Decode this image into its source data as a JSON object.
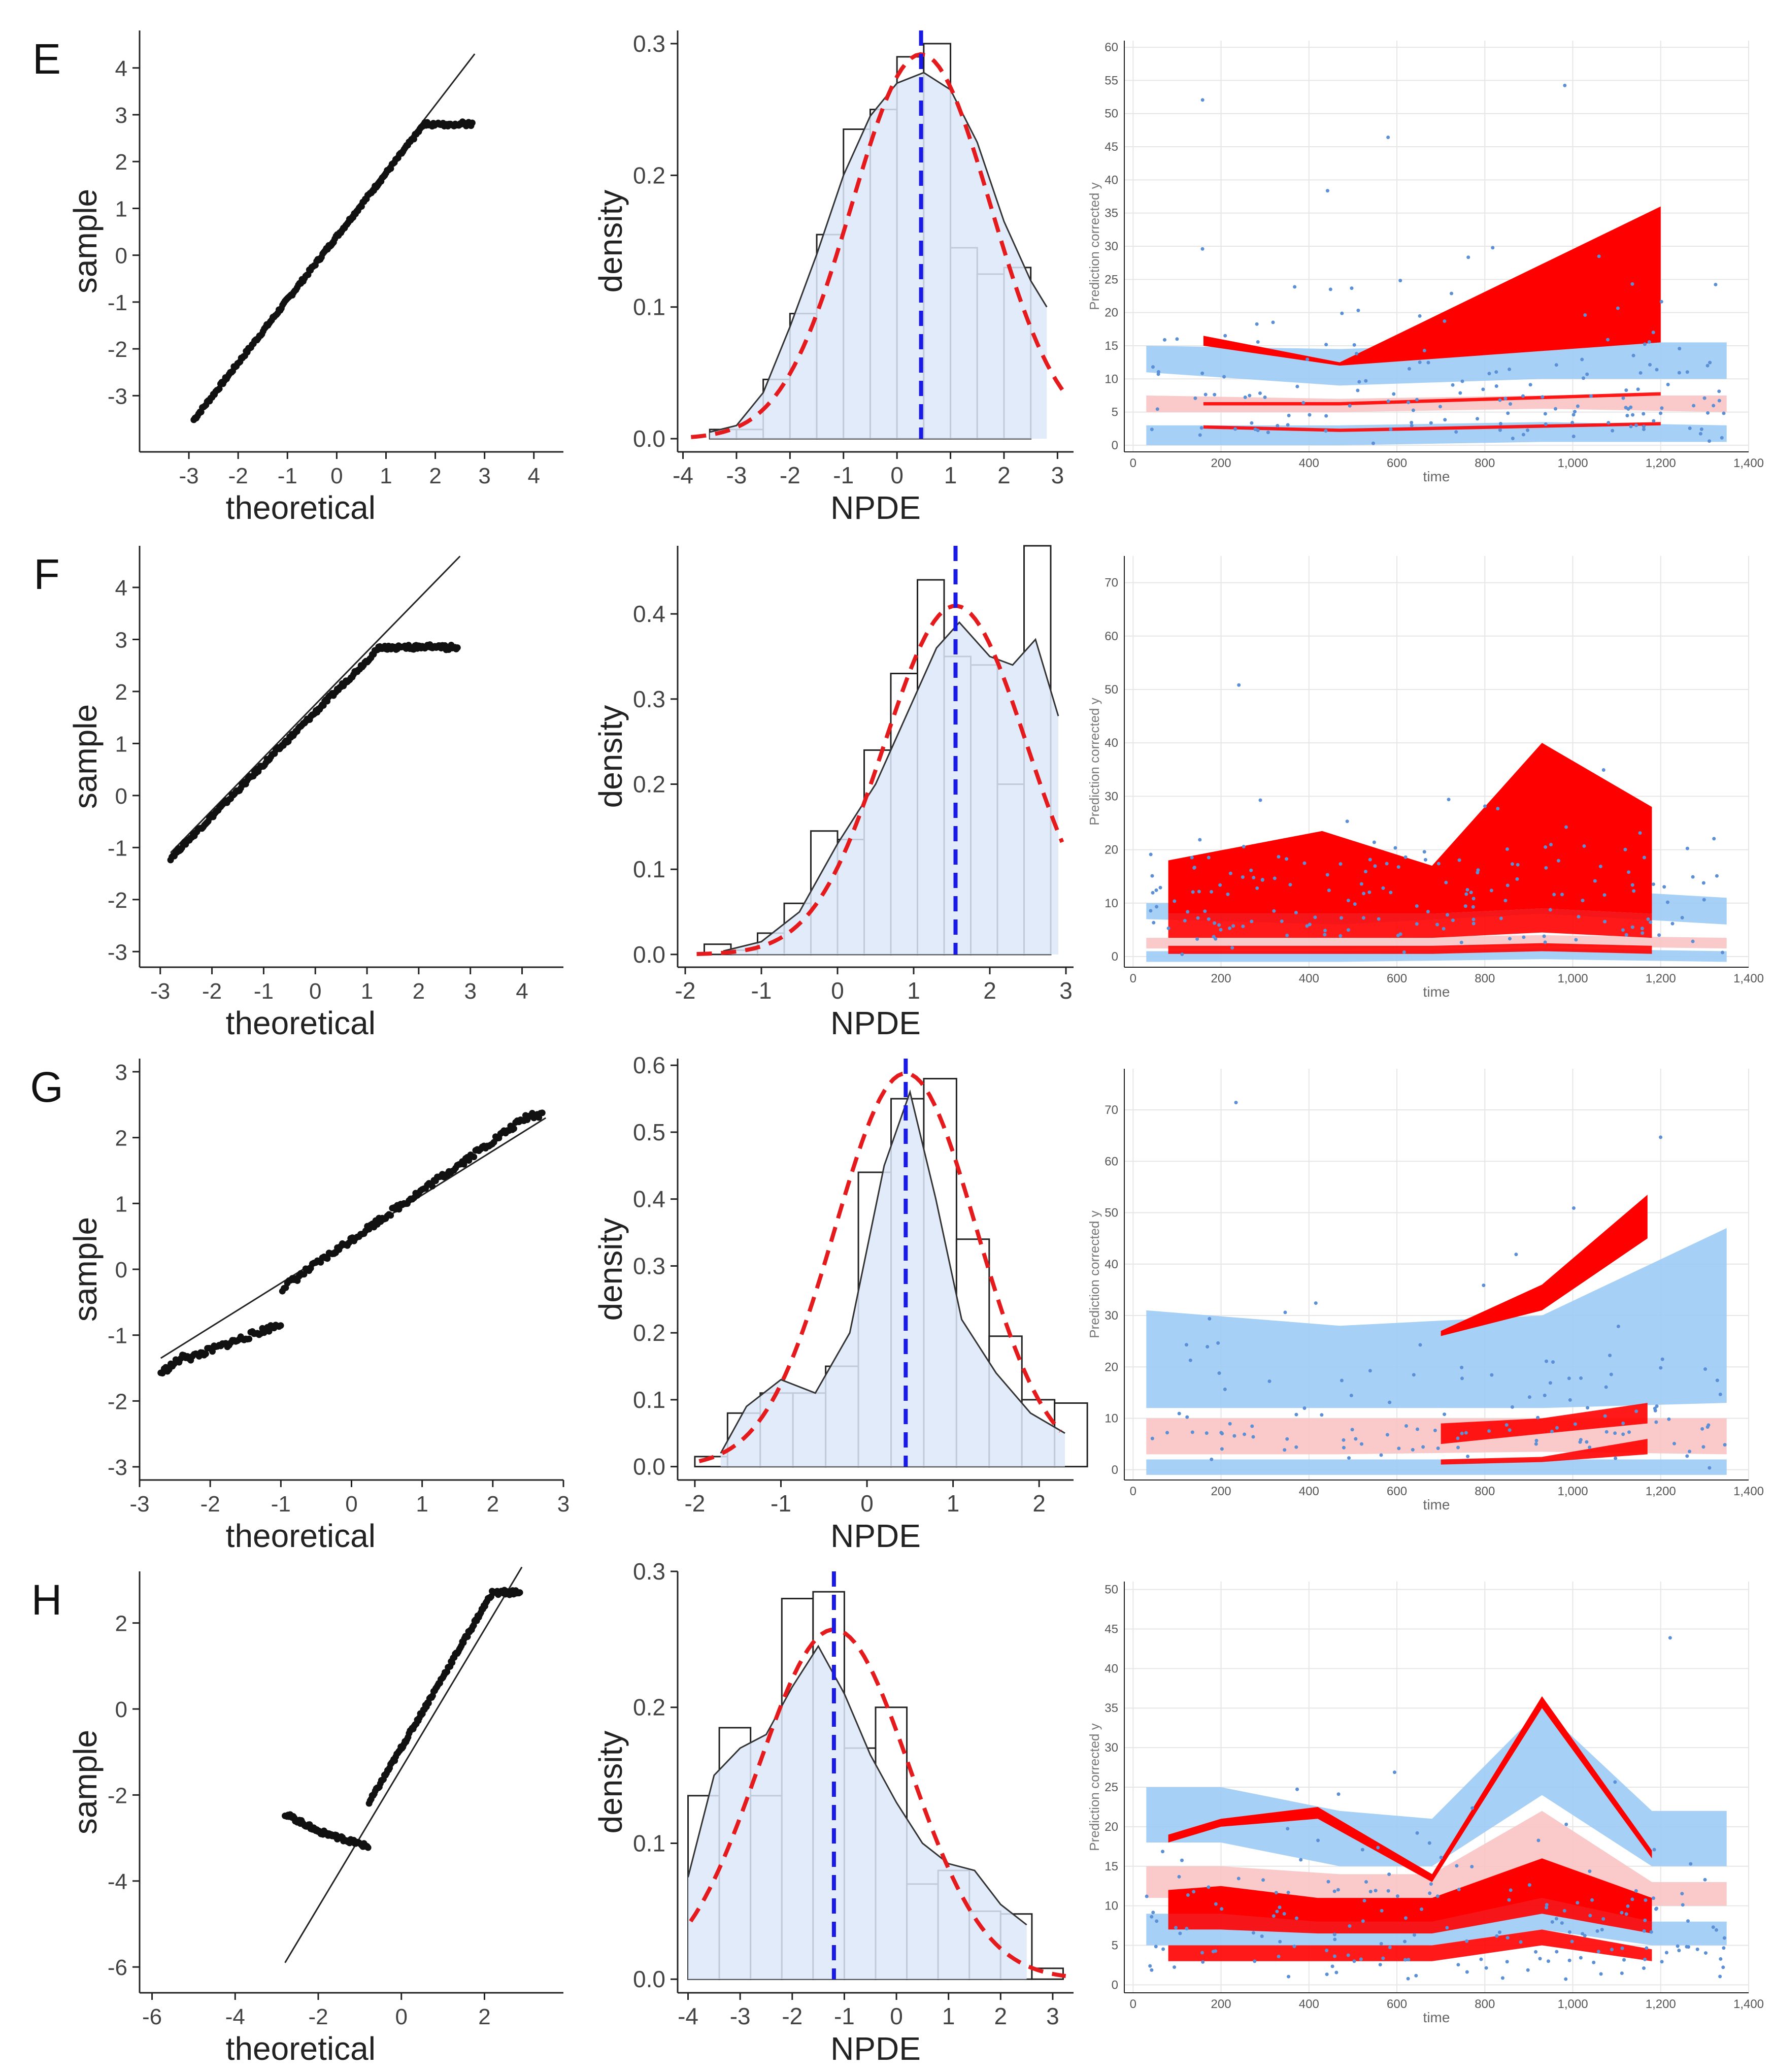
{
  "colors": {
    "hist_fill": "#dce8f8",
    "hist_stroke": "#222222",
    "normal_curve": "#e41a1c",
    "mean_line": "#1a1ae6",
    "vpc_obs_band": "#ff0000",
    "vpc_pi_blue": "#9ccbf4",
    "vpc_pi_pink": "#f9c4c4",
    "vpc_points": "#5b8fd6",
    "grid": "#e6e6e6"
  },
  "panels": [
    {
      "label": "E",
      "qq": {
        "xlabel": "theoretical",
        "ylabel": "sample",
        "xlim": [
          -4,
          4.6
        ],
        "ylim": [
          -4.2,
          4.8
        ],
        "xticks": [
          "-3",
          "-2",
          "-1",
          "0",
          "1",
          "2",
          "3",
          "4"
        ],
        "yticks": [
          "-3",
          "-2",
          "-1",
          "0",
          "1",
          "2",
          "3",
          "4"
        ],
        "line": [
          [
            -2.9,
            -3.5
          ],
          [
            2.8,
            4.3
          ]
        ],
        "cap": 2.8,
        "noise": 0.04,
        "slope": 1.35,
        "intercept": 0.4
      },
      "hist": {
        "xlabel": "NPDE",
        "ylabel": "density",
        "xlim": [
          -4.1,
          3.3
        ],
        "ylim": [
          -0.01,
          0.31
        ],
        "xticks": [
          "-4",
          "-3",
          "-2",
          "-1",
          "0",
          "1",
          "2",
          "3"
        ],
        "yticks": [
          "0.0",
          "0.1",
          "0.2",
          "0.3"
        ],
        "bin_start": -3.5,
        "bin_width": 0.5,
        "densities": [
          0.007,
          0.007,
          0.045,
          0.095,
          0.155,
          0.235,
          0.25,
          0.29,
          0.3,
          0.145,
          0.125,
          0.13
        ],
        "normal": {
          "mean": 0.45,
          "sd": 1.3
        },
        "smooth_x": [
          -3.5,
          -3.0,
          -2.5,
          -2.0,
          -1.5,
          -1.0,
          -0.5,
          0.0,
          0.5,
          1.0,
          1.5,
          2.0,
          2.5,
          2.8
        ],
        "smooth_y": [
          0.005,
          0.01,
          0.035,
          0.085,
          0.14,
          0.2,
          0.245,
          0.27,
          0.278,
          0.265,
          0.225,
          0.165,
          0.12,
          0.1
        ],
        "mean_line": 0.45
      },
      "vpc": {
        "xlabel": "time",
        "ylabel": "Prediction corrected y",
        "xlim": [
          -20,
          1400
        ],
        "ylim": [
          -1,
          61
        ],
        "xticks": [
          0,
          200,
          400,
          600,
          800,
          1000,
          1200,
          1400
        ],
        "xtick_labels": [
          "0",
          "200",
          "400",
          "600",
          "800",
          "1,000",
          "1,200",
          "1,400"
        ],
        "yticks": [
          0,
          5,
          10,
          15,
          20,
          25,
          30,
          35,
          40,
          45,
          50,
          55,
          60
        ],
        "bin_times": [
          30,
          470,
          930,
          1350
        ],
        "pi_blue_upper": [
          [
            11,
            15
          ],
          [
            9,
            14.5
          ],
          [
            10,
            15.5
          ],
          [
            10,
            15.5
          ]
        ],
        "pi_pink": [
          [
            5,
            7.5
          ],
          [
            5,
            7
          ],
          [
            5.5,
            7.5
          ],
          [
            5,
            7.5
          ]
        ],
        "pi_blue_lower": [
          [
            0,
            3
          ],
          [
            0,
            3
          ],
          [
            0.5,
            3.5
          ],
          [
            0.5,
            3
          ]
        ],
        "obs_times": [
          160,
          470,
          1200
        ],
        "obs_upper": [
          [
            15,
            16.5
          ],
          [
            12,
            12.5
          ],
          [
            15.5,
            36
          ]
        ],
        "obs_mid": [
          [
            6,
            6.5
          ],
          [
            6,
            6.5
          ],
          [
            7.5,
            8
          ]
        ],
        "obs_lower": [
          [
            2.5,
            3
          ],
          [
            2,
            2.5
          ],
          [
            3,
            3.5
          ]
        ],
        "n_points": 160,
        "point_max": 60,
        "seed": 11
      }
    },
    {
      "label": "F",
      "qq": {
        "xlabel": "theoretical",
        "ylabel": "sample",
        "xlim": [
          -3.4,
          4.8
        ],
        "ylim": [
          -3.3,
          4.8
        ],
        "xticks": [
          "-3",
          "-2",
          "-1",
          "0",
          "1",
          "2",
          "3",
          "4"
        ],
        "yticks": [
          "-3",
          "-2",
          "-1",
          "0",
          "1",
          "2",
          "3",
          "4"
        ],
        "line": [
          [
            -2.8,
            -1.1
          ],
          [
            2.8,
            4.6
          ]
        ],
        "cap": 2.85,
        "noise": 0.04,
        "slope": 1.0,
        "intercept": 1.6
      },
      "hist": {
        "xlabel": "NPDE",
        "ylabel": "density",
        "xlim": [
          -2.1,
          3.1
        ],
        "ylim": [
          -0.015,
          0.48
        ],
        "xticks": [
          "-2",
          "-1",
          "0",
          "1",
          "2",
          "3"
        ],
        "yticks": [
          "0.0",
          "0.1",
          "0.2",
          "0.3",
          "0.4"
        ],
        "bin_start": -1.75,
        "bin_width": 0.35,
        "densities": [
          0.012,
          0.005,
          0.025,
          0.06,
          0.145,
          0.135,
          0.24,
          0.33,
          0.44,
          0.35,
          0.34,
          0.2,
          0.48
        ],
        "normal": {
          "mean": 1.55,
          "sd": 0.93
        },
        "smooth_x": [
          -1.5,
          -1.0,
          -0.5,
          0.0,
          0.5,
          1.0,
          1.3,
          1.6,
          2.0,
          2.3,
          2.6,
          2.9
        ],
        "smooth_y": [
          0.004,
          0.015,
          0.05,
          0.13,
          0.2,
          0.3,
          0.36,
          0.39,
          0.35,
          0.34,
          0.37,
          0.28
        ],
        "mean_line": 1.55
      },
      "vpc": {
        "xlabel": "time",
        "ylabel": "Prediction corrected y",
        "xlim": [
          -20,
          1400
        ],
        "ylim": [
          -2,
          75
        ],
        "xticks": [
          0,
          200,
          400,
          600,
          800,
          1000,
          1200,
          1400
        ],
        "xtick_labels": [
          "0",
          "200",
          "400",
          "600",
          "800",
          "1,000",
          "1,200",
          "1,400"
        ],
        "yticks": [
          0,
          10,
          20,
          30,
          40,
          50,
          60,
          70
        ],
        "bin_times": [
          30,
          470,
          930,
          1350
        ],
        "pi_blue_upper": [
          [
            7,
            10
          ],
          [
            6,
            10
          ],
          [
            8,
            13
          ],
          [
            6,
            11
          ]
        ],
        "pi_pink": [
          [
            1.5,
            3.5
          ],
          [
            1.5,
            3.5
          ],
          [
            2,
            4
          ],
          [
            1.5,
            3.5
          ]
        ],
        "pi_blue_lower": [
          [
            -1,
            1
          ],
          [
            -1,
            1
          ],
          [
            -0.5,
            1.5
          ],
          [
            -1,
            1
          ]
        ],
        "obs_times": [
          80,
          430,
          680,
          930,
          1180
        ],
        "obs_upper": [
          [
            8,
            18
          ],
          [
            8,
            23.5
          ],
          [
            8,
            17
          ],
          [
            9,
            40
          ],
          [
            8,
            28
          ]
        ],
        "obs_mid": [
          [
            3.5,
            8
          ],
          [
            3.5,
            8
          ],
          [
            3.5,
            8
          ],
          [
            4.5,
            9
          ],
          [
            3.5,
            8
          ]
        ],
        "obs_lower": [
          [
            0.5,
            2
          ],
          [
            0.5,
            2
          ],
          [
            0.5,
            2
          ],
          [
            1,
            2.5
          ],
          [
            0.5,
            2
          ]
        ],
        "n_points": 170,
        "point_max": 73,
        "seed": 23
      }
    },
    {
      "label": "G",
      "qq": {
        "xlabel": "theoretical",
        "ylabel": "sample",
        "xlim": [
          -3,
          3
        ],
        "ylim": [
          -3.2,
          3.2
        ],
        "xticks": [
          "-3",
          "-2",
          "-1",
          "0",
          "1",
          "2",
          "3"
        ],
        "yticks": [
          "-3",
          "-2",
          "-1",
          "0",
          "1",
          "2",
          "3"
        ],
        "line": [
          [
            -2.7,
            -1.35
          ],
          [
            2.75,
            2.3
          ]
        ],
        "cap": 2.35,
        "noise": 0.05,
        "slope": 0.75,
        "intercept": 0.45
      },
      "hist": {
        "xlabel": "NPDE",
        "ylabel": "density",
        "xlim": [
          -2.2,
          2.4
        ],
        "ylim": [
          -0.02,
          0.61
        ],
        "xticks": [
          "-2",
          "-1",
          "0",
          "1",
          "2"
        ],
        "yticks": [
          "0.0",
          "0.1",
          "0.2",
          "0.3",
          "0.4",
          "0.5",
          "0.6"
        ],
        "bin_start": -2.0,
        "bin_width": 0.38,
        "densities": [
          0.015,
          0.08,
          0.11,
          0.11,
          0.15,
          0.44,
          0.55,
          0.58,
          0.34,
          0.195,
          0.1,
          0.095
        ],
        "normal": {
          "mean": 0.45,
          "sd": 0.82
        },
        "smooth_x": [
          -1.7,
          -1.4,
          -1.0,
          -0.6,
          -0.2,
          0.2,
          0.5,
          0.8,
          1.1,
          1.5,
          1.9,
          2.3
        ],
        "smooth_y": [
          0.02,
          0.09,
          0.13,
          0.11,
          0.2,
          0.45,
          0.56,
          0.4,
          0.22,
          0.14,
          0.08,
          0.05
        ],
        "mean_line": 0.45
      },
      "vpc": {
        "xlabel": "time",
        "ylabel": "Prediction corrected y",
        "xlim": [
          -20,
          1400
        ],
        "ylim": [
          -2,
          78
        ],
        "xticks": [
          0,
          200,
          400,
          600,
          800,
          1000,
          1200,
          1400
        ],
        "xtick_labels": [
          "0",
          "200",
          "400",
          "600",
          "800",
          "1,000",
          "1,200",
          "1,400"
        ],
        "yticks": [
          0,
          10,
          20,
          30,
          40,
          50,
          60,
          70
        ],
        "bin_times": [
          30,
          470,
          930,
          1350
        ],
        "pi_blue_upper": [
          [
            12,
            31
          ],
          [
            12,
            28
          ],
          [
            12,
            30
          ],
          [
            13,
            47
          ]
        ],
        "pi_pink": [
          [
            3,
            10
          ],
          [
            3,
            10
          ],
          [
            3.5,
            10
          ],
          [
            3,
            10
          ]
        ],
        "pi_blue_lower": [
          [
            -1,
            2
          ],
          [
            -1,
            2
          ],
          [
            -1,
            2
          ],
          [
            -1,
            2
          ]
        ],
        "obs_times": [
          700,
          930,
          1170
        ],
        "obs_upper": [
          [
            26,
            27
          ],
          [
            31,
            36
          ],
          [
            45,
            53.5
          ]
        ],
        "obs_mid": [
          [
            5,
            9
          ],
          [
            7,
            10
          ],
          [
            9,
            13
          ]
        ],
        "obs_lower": [
          [
            1,
            2
          ],
          [
            1.5,
            2.5
          ],
          [
            3,
            6
          ]
        ],
        "n_points": 120,
        "point_max": 76,
        "seed": 37
      }
    },
    {
      "label": "H",
      "qq": {
        "xlabel": "theoretical",
        "ylabel": "sample",
        "xlim": [
          -6.3,
          3.9
        ],
        "ylim": [
          -6.6,
          3.2
        ],
        "xticks": [
          "-6",
          "-4",
          "-2",
          "0",
          "2"
        ],
        "yticks": [
          "-6",
          "-4",
          "-2",
          "0",
          "2"
        ],
        "line": [
          [
            -2.8,
            -5.9
          ],
          [
            2.9,
            3.3
          ]
        ],
        "cap": 2.7,
        "noise": 0.05,
        "slope": 1.65,
        "intercept": -0.9
      },
      "hist": {
        "xlabel": "NPDE",
        "ylabel": "density",
        "xlim": [
          -4.2,
          3.4
        ],
        "ylim": [
          -0.01,
          0.3
        ],
        "xticks": [
          "-4",
          "-3",
          "-2",
          "-1",
          "0",
          "1",
          "2",
          "3"
        ],
        "yticks": [
          "0.0",
          "0.1",
          "0.2",
          "0.3"
        ],
        "bin_start": -4.0,
        "bin_width": 0.6,
        "densities": [
          0.135,
          0.185,
          0.135,
          0.28,
          0.285,
          0.17,
          0.2,
          0.07,
          0.08,
          0.05,
          0.048,
          0.008
        ],
        "normal": {
          "mean": -1.2,
          "sd": 1.45
        },
        "smooth_x": [
          -4.0,
          -3.5,
          -3.0,
          -2.5,
          -2.0,
          -1.5,
          -1.0,
          -0.5,
          0.0,
          0.5,
          1.0,
          1.5,
          2.0,
          2.5
        ],
        "smooth_y": [
          0.075,
          0.15,
          0.17,
          0.18,
          0.215,
          0.245,
          0.21,
          0.165,
          0.13,
          0.1,
          0.085,
          0.08,
          0.055,
          0.04
        ],
        "mean_line": -1.2
      },
      "vpc": {
        "xlabel": "time",
        "ylabel": "Prediction corrected y",
        "xlim": [
          -20,
          1400
        ],
        "ylim": [
          -1,
          51
        ],
        "xticks": [
          0,
          200,
          400,
          600,
          800,
          1000,
          1200,
          1400
        ],
        "xtick_labels": [
          "0",
          "200",
          "400",
          "600",
          "800",
          "1,000",
          "1,200",
          "1,400"
        ],
        "yticks": [
          0,
          5,
          10,
          15,
          20,
          25,
          30,
          35,
          40,
          45,
          50
        ],
        "bin_times": [
          30,
          200,
          470,
          680,
          930,
          1180,
          1350
        ],
        "pi_blue_upper": [
          [
            18,
            25
          ],
          [
            18,
            25
          ],
          [
            15,
            22
          ],
          [
            15,
            21
          ],
          [
            24,
            35
          ],
          [
            15,
            22
          ],
          [
            15,
            22
          ]
        ],
        "pi_pink": [
          [
            11,
            15
          ],
          [
            11,
            15
          ],
          [
            10,
            14
          ],
          [
            10,
            14
          ],
          [
            14,
            22
          ],
          [
            10,
            13
          ],
          [
            10,
            13
          ]
        ],
        "pi_blue_lower": [
          [
            5,
            9
          ],
          [
            5,
            9
          ],
          [
            5,
            8
          ],
          [
            5,
            8
          ],
          [
            7,
            12
          ],
          [
            5,
            8
          ],
          [
            5,
            8
          ]
        ],
        "obs_times": [
          80,
          200,
          420,
          680,
          930,
          1180
        ],
        "obs_upper": [
          [
            9,
            12
          ],
          [
            9,
            12.5
          ],
          [
            8,
            11
          ],
          [
            8,
            11
          ],
          [
            11,
            16
          ],
          [
            8,
            11
          ]
        ],
        "obs_mid": [
          [
            7,
            9.5
          ],
          [
            7,
            9.5
          ],
          [
            6.5,
            9
          ],
          [
            6.5,
            9
          ],
          [
            9,
            13
          ],
          [
            6.5,
            9
          ]
        ],
        "obs_lower": [
          [
            3,
            5
          ],
          [
            3,
            5
          ],
          [
            3,
            5
          ],
          [
            3,
            5
          ],
          [
            5,
            7
          ],
          [
            3,
            4.5
          ]
        ],
        "obs_top": [
          [
            18,
            19
          ],
          [
            20,
            21
          ],
          [
            21,
            22.5
          ],
          [
            13,
            14
          ],
          [
            35,
            36.5
          ],
          [
            16,
            17
          ]
        ],
        "n_points": 180,
        "point_max": 50,
        "seed": 53
      }
    }
  ]
}
